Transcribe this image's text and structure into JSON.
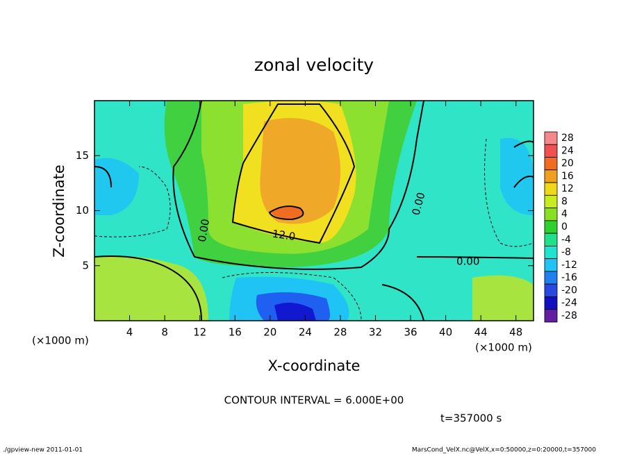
{
  "chart_data": {
    "type": "contour",
    "title": "zonal velocity",
    "x_label": "X-coordinate",
    "y_label": "Z-coordinate",
    "x_unit": "(×1000 m)",
    "xlim": [
      0,
      50
    ],
    "xticks": [
      4,
      8,
      12,
      16,
      20,
      24,
      28,
      32,
      36,
      40,
      44,
      48
    ],
    "ylim": [
      0,
      20
    ],
    "yticks": [
      5,
      10,
      15
    ],
    "contour_labels": [
      "0.00",
      "12.0",
      "0.00",
      "0.00"
    ],
    "colorbar": {
      "ticks": [
        28,
        24,
        20,
        16,
        12,
        8,
        4,
        0,
        -4,
        -8,
        -12,
        -16,
        -20,
        -24,
        -28
      ],
      "colors": [
        "#f4888c",
        "#f05050",
        "#f06c20",
        "#f0a020",
        "#f0d818",
        "#c8ec20",
        "#88e020",
        "#30d030",
        "#20e08c",
        "#20e4d0",
        "#20c4f4",
        "#2080f0",
        "#2848e0",
        "#1010c0",
        "#6020a0"
      ]
    },
    "contour_interval": "CONTOUR INTERVAL = 6.000E+00",
    "time": "t=357000 s",
    "footer_left": "./gpview-new  2011-01-01",
    "footer_right": "MarsCond_VelX.nc@VelX,x=0:50000,z=0:20000,t=357000"
  }
}
